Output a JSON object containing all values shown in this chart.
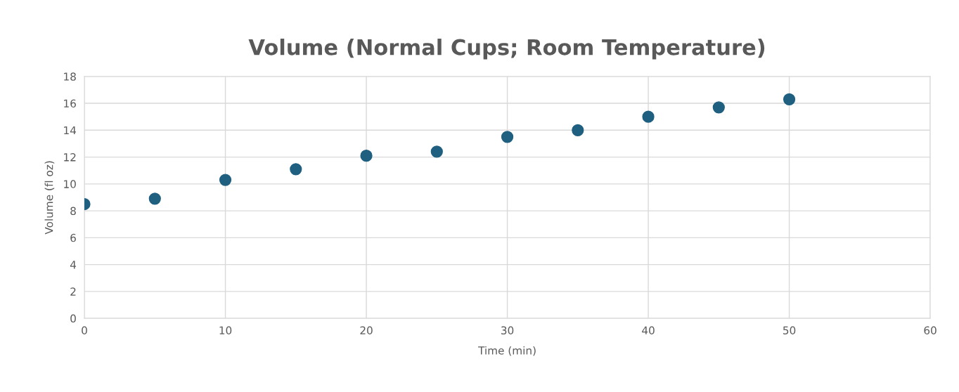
{
  "chart_data": {
    "type": "scatter",
    "title": "Volume (Normal Cups; Room Temperature)",
    "xlabel": "Time (min)",
    "ylabel": "Volume (fl oz)",
    "x": [
      0,
      5,
      10,
      15,
      20,
      25,
      30,
      35,
      40,
      45,
      50
    ],
    "series": [
      {
        "color": "#1f5f80",
        "values": [
          8.5,
          8.9,
          10.3,
          11.1,
          12.1,
          12.4,
          13.5,
          14.0,
          15.0,
          15.7,
          16.3
        ]
      }
    ],
    "xlim": [
      0,
      60
    ],
    "xticks": [
      0,
      10,
      20,
      30,
      40,
      50,
      60
    ],
    "ylim": [
      0,
      18
    ],
    "yticks": [
      0,
      2,
      4,
      6,
      8,
      10,
      12,
      14,
      16,
      18
    ],
    "grid": true,
    "marker": "circle",
    "legend": false
  }
}
